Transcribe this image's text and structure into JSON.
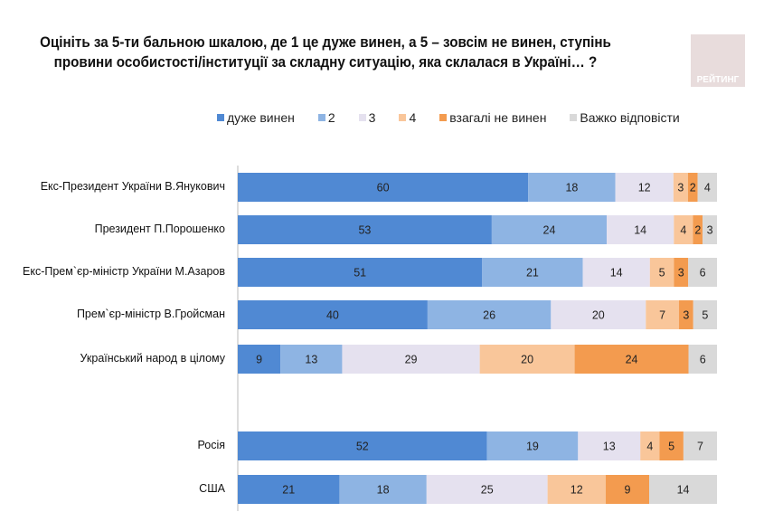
{
  "title": "Оцініть за 5-ти бальною шкалою, де 1 це дуже винен, а 5 – зовсім не винен, ступінь провини особистості/інституції за складну ситуацію, яка склалася в Україні… ?",
  "logo_text": "РЕЙТИНГ",
  "chart_data": {
    "type": "bar",
    "orientation": "horizontal-stacked-100",
    "legend_position": "top",
    "categories": [
      "Екс-Президент України В.Янукович",
      "Президент П.Порошенко",
      "Екс-Прем`єр-міністр України М.Азаров",
      "Прем`єр-міністр В.Гройсман",
      "Український народ в цілому",
      "Росія",
      "США"
    ],
    "series": [
      {
        "name": "дуже винен",
        "color": "#5089d3",
        "values": [
          60,
          53,
          51,
          40,
          9,
          52,
          21
        ]
      },
      {
        "name": "2",
        "color": "#8eb4e3",
        "values": [
          18,
          24,
          21,
          26,
          13,
          19,
          18
        ]
      },
      {
        "name": "3",
        "color": "#e5e1ef",
        "values": [
          12,
          14,
          14,
          20,
          29,
          13,
          25
        ]
      },
      {
        "name": "4",
        "color": "#f9c69a",
        "values": [
          3,
          4,
          5,
          7,
          20,
          4,
          12
        ]
      },
      {
        "name": "взагалі не винен",
        "color": "#f39b4f",
        "values": [
          2,
          2,
          3,
          3,
          24,
          5,
          9
        ]
      },
      {
        "name": "Важко відповісти",
        "color": "#d9d9d9",
        "values": [
          4,
          3,
          6,
          5,
          6,
          7,
          14
        ]
      }
    ]
  }
}
